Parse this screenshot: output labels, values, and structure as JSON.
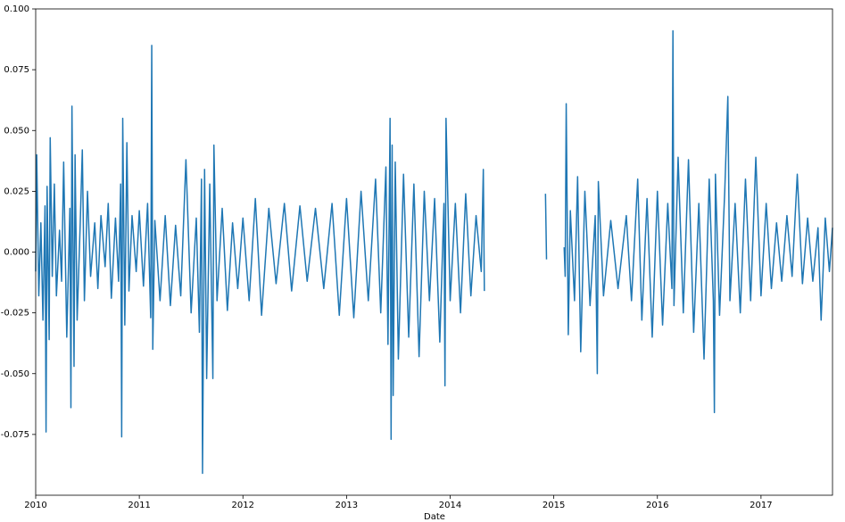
{
  "chart_data": {
    "type": "line",
    "x_label": "Date",
    "x": [
      2010.0,
      2010.01,
      2010.03,
      2010.05,
      2010.07,
      2010.09,
      2010.1,
      2010.11,
      2010.13,
      2010.14,
      2010.16,
      2010.18,
      2010.2,
      2010.23,
      2010.25,
      2010.27,
      2010.3,
      2010.33,
      2010.34,
      2010.35,
      2010.37,
      2010.38,
      2010.4,
      2010.43,
      2010.45,
      2010.47,
      2010.5,
      2010.53,
      2010.57,
      2010.6,
      2010.63,
      2010.67,
      2010.7,
      2010.73,
      2010.77,
      2010.8,
      2010.82,
      2010.83,
      2010.84,
      2010.86,
      2010.88,
      2010.9,
      2010.93,
      2010.97,
      2011.0,
      2011.04,
      2011.08,
      2011.11,
      2011.12,
      2011.13,
      2011.15,
      2011.2,
      2011.25,
      2011.3,
      2011.35,
      2011.4,
      2011.45,
      2011.5,
      2011.55,
      2011.58,
      2011.6,
      2011.61,
      2011.63,
      2011.65,
      2011.68,
      2011.71,
      2011.72,
      2011.75,
      2011.8,
      2011.85,
      2011.9,
      2011.95,
      2012.0,
      2012.06,
      2012.12,
      2012.18,
      2012.25,
      2012.32,
      2012.4,
      2012.47,
      2012.55,
      2012.62,
      2012.7,
      2012.78,
      2012.86,
      2012.93,
      2013.0,
      2013.07,
      2013.14,
      2013.21,
      2013.28,
      2013.33,
      2013.38,
      2013.4,
      2013.42,
      2013.43,
      2013.44,
      2013.45,
      2013.47,
      2013.5,
      2013.55,
      2013.6,
      2013.65,
      2013.7,
      2013.75,
      2013.8,
      2013.85,
      2013.9,
      2013.94,
      2013.95,
      2013.96,
      2014.0,
      2014.05,
      2014.1,
      2014.15,
      2014.2,
      2014.25,
      2014.3,
      2014.32,
      2014.33,
      2014.4,
      2014.92,
      2014.93,
      2015.0,
      2015.1,
      2015.11,
      2015.12,
      2015.14,
      2015.16,
      2015.2,
      2015.23,
      2015.26,
      2015.3,
      2015.35,
      2015.4,
      2015.42,
      2015.43,
      2015.48,
      2015.55,
      2015.62,
      2015.7,
      2015.75,
      2015.81,
      2015.85,
      2015.9,
      2015.95,
      2016.0,
      2016.05,
      2016.1,
      2016.14,
      2016.15,
      2016.16,
      2016.2,
      2016.25,
      2016.3,
      2016.35,
      2016.4,
      2016.45,
      2016.5,
      2016.54,
      2016.55,
      2016.56,
      2016.6,
      2016.65,
      2016.68,
      2016.7,
      2016.75,
      2016.8,
      2016.85,
      2016.9,
      2016.95,
      2017.0,
      2017.05,
      2017.1,
      2017.15,
      2017.2,
      2017.25,
      2017.3,
      2017.35,
      2017.4,
      2017.45,
      2017.5,
      2017.55,
      2017.58,
      2017.62,
      2017.66,
      2017.69
    ],
    "series": [
      {
        "color": "#1f77b4",
        "values": [
          -0.008,
          0.04,
          -0.018,
          0.012,
          -0.028,
          0.019,
          -0.074,
          0.027,
          -0.036,
          0.047,
          -0.01,
          0.028,
          -0.018,
          0.009,
          -0.012,
          0.037,
          -0.035,
          0.018,
          -0.064,
          0.06,
          -0.047,
          0.04,
          -0.028,
          0.012,
          0.042,
          -0.02,
          0.025,
          -0.01,
          0.012,
          -0.015,
          0.015,
          -0.006,
          0.02,
          -0.019,
          0.014,
          -0.012,
          0.028,
          -0.076,
          0.055,
          -0.03,
          0.045,
          -0.016,
          0.015,
          -0.008,
          0.017,
          -0.014,
          0.02,
          -0.027,
          0.085,
          -0.04,
          0.013,
          -0.02,
          0.015,
          -0.022,
          0.011,
          -0.018,
          0.038,
          -0.025,
          0.014,
          -0.033,
          0.03,
          -0.091,
          0.034,
          -0.052,
          0.028,
          -0.052,
          0.044,
          -0.02,
          0.018,
          -0.024,
          0.012,
          -0.015,
          0.014,
          -0.02,
          0.022,
          -0.026,
          0.018,
          -0.013,
          0.02,
          -0.016,
          0.019,
          -0.012,
          0.018,
          -0.015,
          0.02,
          -0.026,
          0.022,
          -0.027,
          0.025,
          -0.02,
          0.03,
          -0.025,
          0.035,
          -0.038,
          0.055,
          -0.077,
          0.044,
          -0.059,
          0.037,
          -0.044,
          0.032,
          -0.035,
          0.028,
          -0.043,
          0.025,
          -0.02,
          0.022,
          -0.037,
          0.02,
          -0.055,
          0.055,
          -0.02,
          0.02,
          -0.025,
          0.024,
          -0.018,
          0.015,
          -0.008,
          0.034,
          -0.016,
          null,
          0.024,
          -0.003,
          null,
          0.002,
          -0.01,
          0.061,
          -0.034,
          0.017,
          -0.02,
          0.031,
          -0.041,
          0.025,
          -0.022,
          0.015,
          -0.05,
          0.029,
          -0.018,
          0.013,
          -0.015,
          0.015,
          -0.02,
          0.03,
          -0.028,
          0.022,
          -0.035,
          0.025,
          -0.03,
          0.02,
          -0.015,
          0.091,
          -0.022,
          0.039,
          -0.025,
          0.038,
          -0.033,
          0.02,
          -0.044,
          0.03,
          -0.02,
          -0.066,
          0.032,
          -0.026,
          0.025,
          0.064,
          -0.02,
          0.02,
          -0.025,
          0.03,
          -0.02,
          0.039,
          -0.018,
          0.02,
          -0.015,
          0.012,
          -0.012,
          0.015,
          -0.01,
          0.032,
          -0.013,
          0.014,
          -0.012,
          0.01,
          -0.028,
          0.014,
          -0.008,
          0.01
        ]
      }
    ],
    "xlim": [
      2010,
      2017.69
    ],
    "xticks": [
      2010,
      2011,
      2012,
      2013,
      2014,
      2015,
      2016,
      2017
    ],
    "ylim": [
      -0.1,
      0.1
    ],
    "yticks": [
      {
        "value": 0.1,
        "label": "0.100"
      },
      0.075,
      {
        "value": 0.05,
        "label": "0.050"
      },
      0.025,
      {
        "value": 0,
        "label": "0.000"
      },
      -0.025,
      {
        "value": -0.05,
        "label": "-0.050"
      },
      -0.075
    ]
  }
}
